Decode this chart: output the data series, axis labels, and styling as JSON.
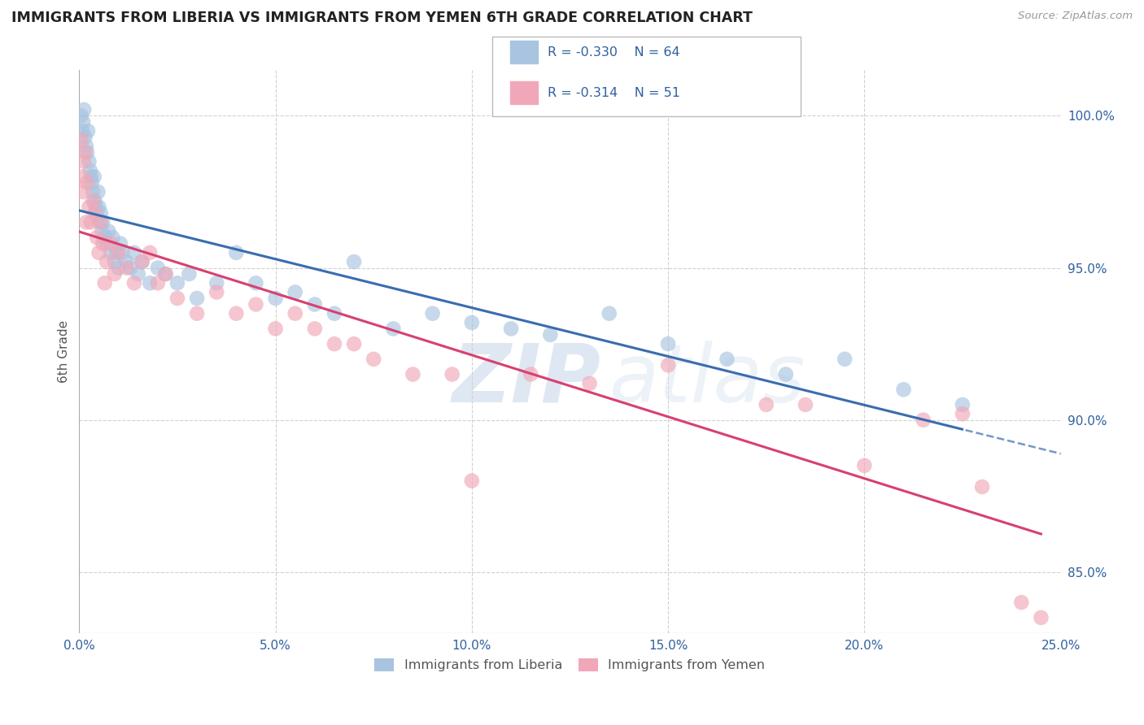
{
  "title": "IMMIGRANTS FROM LIBERIA VS IMMIGRANTS FROM YEMEN 6TH GRADE CORRELATION CHART",
  "source": "Source: ZipAtlas.com",
  "ylabel": "6th Grade",
  "xlim": [
    0.0,
    25.0
  ],
  "ylim": [
    83.0,
    101.5
  ],
  "x_ticks": [
    0.0,
    5.0,
    10.0,
    15.0,
    20.0,
    25.0
  ],
  "x_tick_labels": [
    "0.0%",
    "5.0%",
    "10.0%",
    "15.0%",
    "20.0%",
    "25.0%"
  ],
  "y_ticks": [
    85.0,
    90.0,
    95.0,
    100.0
  ],
  "y_tick_labels": [
    "85.0%",
    "90.0%",
    "95.0%",
    "100.0%"
  ],
  "legend_labels": [
    "Immigrants from Liberia",
    "Immigrants from Yemen"
  ],
  "legend_r": [
    "R = -0.330",
    "R = -0.314"
  ],
  "legend_n": [
    "N = 64",
    "N = 51"
  ],
  "color_liberia": "#a8c4e0",
  "color_yemen": "#f0a8b8",
  "line_color_liberia": "#3a6cb0",
  "line_color_yemen": "#d84070",
  "background_color": "#ffffff",
  "grid_color": "#d0d0d0",
  "watermark_zip": "ZIP",
  "watermark_atlas": "atlas",
  "liberia_x": [
    0.05,
    0.08,
    0.1,
    0.12,
    0.15,
    0.18,
    0.2,
    0.22,
    0.25,
    0.28,
    0.3,
    0.32,
    0.35,
    0.38,
    0.4,
    0.42,
    0.45,
    0.48,
    0.5,
    0.52,
    0.55,
    0.58,
    0.6,
    0.65,
    0.7,
    0.75,
    0.8,
    0.85,
    0.9,
    0.95,
    1.0,
    1.05,
    1.1,
    1.2,
    1.3,
    1.4,
    1.5,
    1.6,
    1.8,
    2.0,
    2.2,
    2.5,
    2.8,
    3.0,
    3.5,
    4.0,
    4.5,
    5.0,
    5.5,
    6.0,
    6.5,
    7.0,
    8.0,
    9.0,
    10.0,
    11.0,
    12.0,
    13.5,
    15.0,
    16.5,
    18.0,
    19.5,
    21.0,
    22.5
  ],
  "liberia_y": [
    100.0,
    99.5,
    99.8,
    100.2,
    99.3,
    99.0,
    98.8,
    99.5,
    98.5,
    98.2,
    98.0,
    97.8,
    97.5,
    98.0,
    97.2,
    97.0,
    96.8,
    97.5,
    97.0,
    96.5,
    96.8,
    96.2,
    96.5,
    96.0,
    95.8,
    96.2,
    95.5,
    96.0,
    95.2,
    95.5,
    95.0,
    95.8,
    95.5,
    95.2,
    95.0,
    95.5,
    94.8,
    95.2,
    94.5,
    95.0,
    94.8,
    94.5,
    94.8,
    94.0,
    94.5,
    95.5,
    94.5,
    94.0,
    94.2,
    93.8,
    93.5,
    95.2,
    93.0,
    93.5,
    93.2,
    93.0,
    92.8,
    93.5,
    92.5,
    92.0,
    91.5,
    92.0,
    91.0,
    90.5
  ],
  "yemen_x": [
    0.05,
    0.08,
    0.1,
    0.12,
    0.15,
    0.18,
    0.2,
    0.25,
    0.3,
    0.35,
    0.4,
    0.45,
    0.5,
    0.55,
    0.6,
    0.65,
    0.7,
    0.8,
    0.9,
    1.0,
    1.2,
    1.4,
    1.6,
    2.0,
    2.5,
    3.0,
    3.5,
    4.0,
    5.0,
    5.5,
    6.0,
    6.5,
    7.5,
    8.5,
    9.5,
    11.5,
    13.0,
    15.0,
    17.5,
    18.5,
    20.0,
    21.5,
    22.5,
    23.0,
    24.0,
    24.5,
    1.8,
    2.2,
    4.5,
    7.0,
    10.0
  ],
  "yemen_y": [
    99.2,
    98.0,
    97.5,
    98.5,
    98.8,
    96.5,
    97.8,
    97.0,
    96.5,
    97.2,
    96.8,
    96.0,
    95.5,
    96.5,
    95.8,
    94.5,
    95.2,
    95.8,
    94.8,
    95.5,
    95.0,
    94.5,
    95.2,
    94.5,
    94.0,
    93.5,
    94.2,
    93.5,
    93.0,
    93.5,
    93.0,
    92.5,
    92.0,
    91.5,
    91.5,
    91.5,
    91.2,
    91.8,
    90.5,
    90.5,
    88.5,
    90.0,
    90.2,
    87.8,
    84.0,
    83.5,
    95.5,
    94.8,
    93.8,
    92.5,
    88.0
  ]
}
